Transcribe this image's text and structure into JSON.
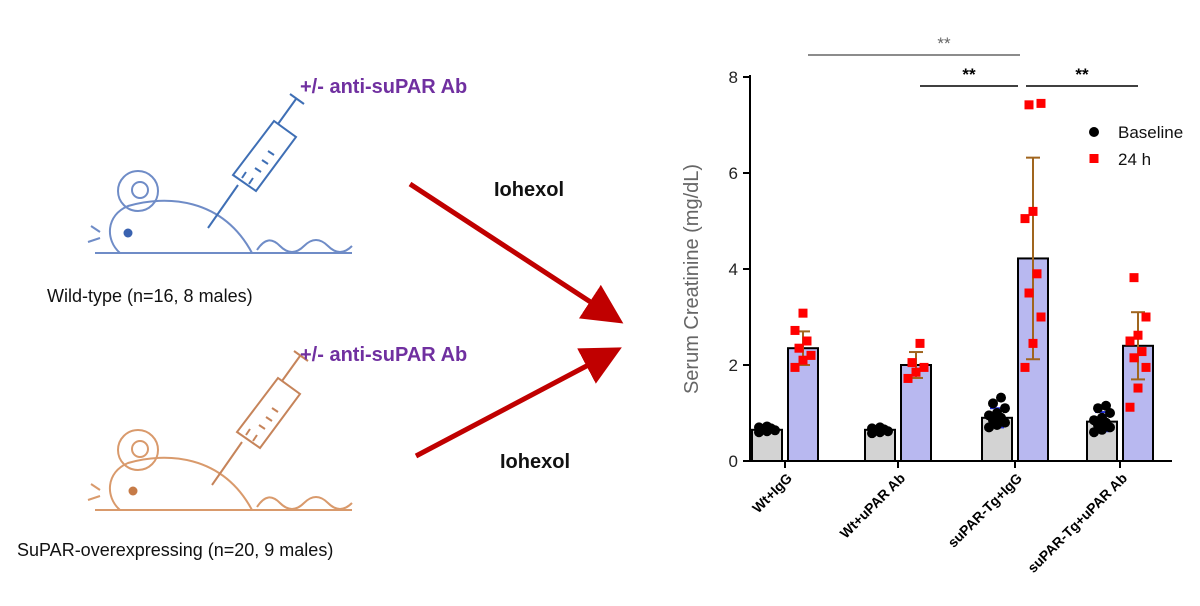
{
  "schematic": {
    "top_antibody_label": "+/- anti-suPAR Ab",
    "bottom_antibody_label": "+/- anti-suPAR Ab",
    "top_agent_label": "Iohexol",
    "bottom_agent_label": "Iohexol",
    "top_mouse_caption": "Wild-type (n=16, 8 males)",
    "bottom_mouse_caption": "SuPAR-overexpressing (n=20, 9 males)",
    "colors": {
      "wildtype_mouse": "#6f8cc7",
      "wildtype_eye": "#3a62b0",
      "transgenic_mouse": "#d99a6c",
      "transgenic_eye": "#c67b47",
      "arrow": "#c00000",
      "label_purple": "#7030a0"
    }
  },
  "chart_data": {
    "type": "bar",
    "title": "",
    "xlabel": "",
    "ylabel": "Serum Creatinine  (mg/dL)",
    "ylim": [
      0,
      8
    ],
    "yticks": [
      "0",
      "2",
      "4",
      "6",
      "8"
    ],
    "categories": [
      "Wt+IgG",
      "Wt+uPAR Ab",
      "suPAR-Tg+IgG",
      "suPAR-Tg+uPAR Ab"
    ],
    "series": [
      {
        "name": "Baseline",
        "marker": "circle",
        "marker_color": "#000000",
        "bar_color": "#d3d3d3",
        "values": [
          0.65,
          0.65,
          0.9,
          0.82
        ],
        "error": [
          0.05,
          0.06,
          0.2,
          0.2
        ],
        "points": [
          [
            0.6,
            0.62,
            0.64,
            0.66,
            0.68,
            0.7,
            0.72
          ],
          [
            0.58,
            0.6,
            0.62,
            0.64,
            0.66,
            0.68,
            0.7
          ],
          [
            0.7,
            0.75,
            0.8,
            0.85,
            0.9,
            0.95,
            1.0,
            1.1,
            1.2,
            1.32
          ],
          [
            0.6,
            0.65,
            0.7,
            0.75,
            0.8,
            0.85,
            0.9,
            1.0,
            1.1,
            1.15
          ]
        ]
      },
      {
        "name": "24 h",
        "marker": "square",
        "marker_color": "#ff0000",
        "bar_color": "#b8b8f0",
        "values": [
          2.35,
          2.0,
          4.22,
          2.4
        ],
        "error": [
          0.35,
          0.27,
          2.1,
          0.7
        ],
        "points": [
          [
            1.95,
            2.1,
            2.2,
            2.35,
            2.5,
            2.72,
            3.08
          ],
          [
            1.72,
            1.85,
            1.95,
            2.05,
            2.45
          ],
          [
            1.95,
            2.45,
            3.0,
            3.5,
            3.9,
            5.05,
            5.2,
            7.45,
            7.42
          ],
          [
            1.12,
            1.52,
            1.95,
            2.15,
            2.28,
            2.5,
            2.62,
            3.0,
            3.82
          ]
        ]
      }
    ],
    "significance": [
      {
        "from": 0,
        "to": 2,
        "label": "**",
        "color": "#666666"
      },
      {
        "from": 1,
        "to": 2,
        "label": "**",
        "color": "#000000"
      },
      {
        "from": 2,
        "to": 3,
        "label": "**",
        "color": "#000000"
      }
    ],
    "legend": {
      "placement": "top-right",
      "entries": [
        "Baseline",
        "24 h"
      ]
    },
    "grid": false
  }
}
